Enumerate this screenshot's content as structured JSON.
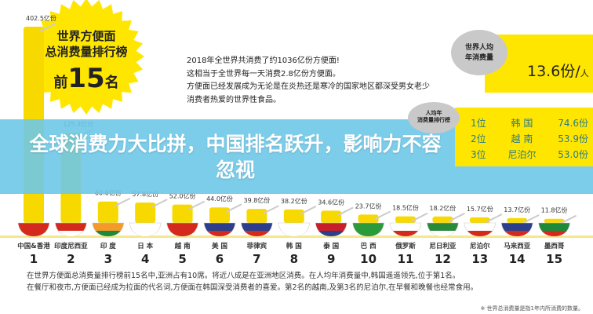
{
  "headline": "全球消费力大比拼，中国排名跃升，影响力不容忽视",
  "starburst": {
    "line1": "世界方便面",
    "line2": "总消费量排行榜",
    "prefix": "前",
    "number": "15",
    "suffix": "名"
  },
  "intro": [
    "2018年全世界共消费了约1036亿份方便面!",
    "这相当于全世界每一天消费2.8亿份方便面。",
    "方便面已经发展成为无论是在炎热还是寒冷的国家地区都深受男女老少",
    "消费者热爱的世界性食品。"
  ],
  "per_capita": {
    "cloud_label": [
      "世界人均",
      "年消费量"
    ],
    "value": "13.6份",
    "unit": "人"
  },
  "per_capita_ranking": {
    "cloud_label": [
      "人均年",
      "消费量排行榜"
    ],
    "items": [
      {
        "rank": "1位",
        "country": "韩 国",
        "value": "74.6份"
      },
      {
        "rank": "2位",
        "country": "越 南",
        "value": "53.9份"
      },
      {
        "rank": "3位",
        "country": "尼泊尔",
        "value": "53.0份"
      }
    ]
  },
  "chart_data": {
    "type": "bar",
    "unit": "亿份",
    "categories": [
      "中国&香港",
      "印度尼西亚",
      "印 度",
      "日 本",
      "越 南",
      "美 国",
      "菲律宾",
      "韩 国",
      "泰 国",
      "巴 西",
      "俄罗斯",
      "尼日利亚",
      "尼泊尔",
      "马来西亚",
      "墨西哥"
    ],
    "ranks": [
      "1",
      "2",
      "3",
      "4",
      "5",
      "6",
      "7",
      "8",
      "9",
      "10",
      "11",
      "12",
      "13",
      "14",
      "15"
    ],
    "values": [
      402.5,
      125.4,
      60.6,
      57.8,
      52.0,
      44.0,
      39.8,
      38.2,
      34.6,
      23.7,
      18.5,
      18.2,
      15.7,
      13.7,
      11.8
    ],
    "labels": [
      "402.5亿份",
      "125.4亿份",
      "60.6亿份",
      "57.8亿份",
      "52.0亿份",
      "44.0亿份",
      "39.8亿份",
      "38.2亿份",
      "34.6亿份",
      "23.7亿份",
      "18.5亿份",
      "18.2亿份",
      "15.7亿份",
      "13.7亿份",
      "11.8亿份"
    ],
    "flag_colors": [
      [
        "#d42a1e",
        "#d42a1e"
      ],
      [
        "#d42a1e",
        "#fff"
      ],
      [
        "#f39a2b",
        "#1d8a3a"
      ],
      [
        "#fff",
        "#fff"
      ],
      [
        "#d42a1e",
        "#d42a1e"
      ],
      [
        "#2b3f8c",
        "#d42a1e"
      ],
      [
        "#2b3f8c",
        "#d42a1e"
      ],
      [
        "#fff",
        "#fff"
      ],
      [
        "#c8202a",
        "#2b3f8c"
      ],
      [
        "#2a9a3a",
        "#2a9a3a"
      ],
      [
        "#fff",
        "#d42a1e"
      ],
      [
        "#2a8a3a",
        "#fff"
      ],
      [
        "#fff",
        "#d42a1e"
      ],
      [
        "#2b3f8c",
        "#d42a1e"
      ],
      [
        "#1d8a3a",
        "#d42a1e"
      ]
    ],
    "noodle_color": "#f7d900"
  },
  "footer": [
    "在世界方便面总消费量排行榜前15名中,亚洲占有10席。将近八成是在亚洲地区消费。在人均年消费量中,韩国遥遥领先,位于第1名。",
    "在餐厅和夜市,方便面已经成为拉面的代名词,方便面在韩国深受消费者的喜爱。第2名的越南,及第3名的尼泊尔,在早餐和晚餐也经常食用。"
  ],
  "note": "※ 世界总消费量是指1年内所消费的数量。"
}
